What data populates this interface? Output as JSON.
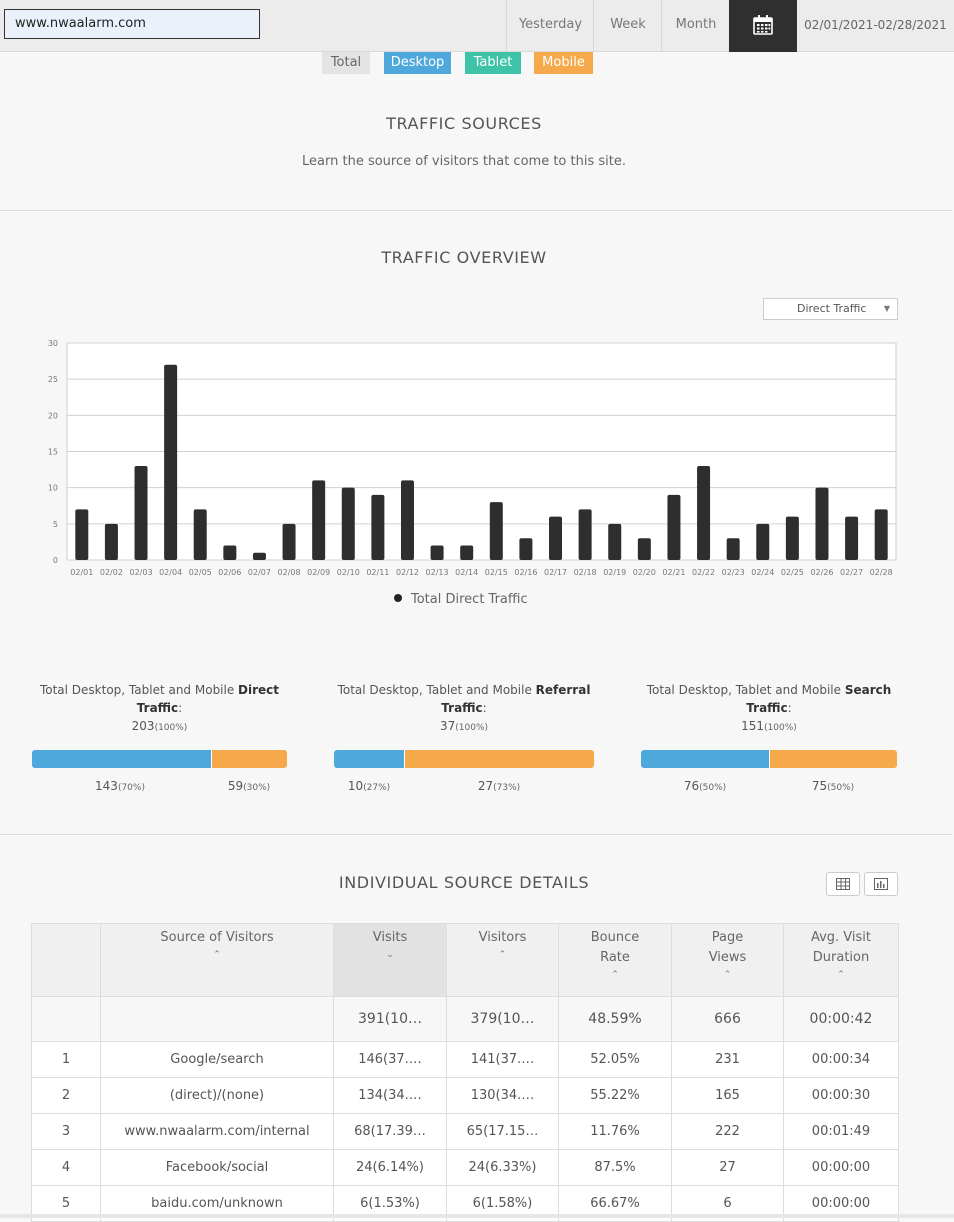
{
  "topbar": {
    "url": "www.nwaalarm.com",
    "ranges": [
      "Yesterday",
      "Week",
      "Month"
    ],
    "calendar_icon": "calendar-icon",
    "date_range": "02/01/2021-02/28/2021"
  },
  "device_tabs": [
    {
      "label": "Total",
      "color": "#e4e4e4"
    },
    {
      "label": "Desktop",
      "color": "#4fa8dc"
    },
    {
      "label": "Tablet",
      "color": "#3ec3a8"
    },
    {
      "label": "Mobile",
      "color": "#f5a94a"
    }
  ],
  "traffic_sources": {
    "title": "TRAFFIC  SOURCES",
    "subtitle": "Learn the source of visitors that come to this site."
  },
  "overview": {
    "title": "TRAFFIC  OVERVIEW",
    "select_value": "Direct Traffic",
    "legend": "Total Direct Traffic"
  },
  "chart_data": {
    "type": "bar",
    "categories": [
      "02/01",
      "02/02",
      "02/03",
      "02/04",
      "02/05",
      "02/06",
      "02/07",
      "02/08",
      "02/09",
      "02/10",
      "02/11",
      "02/12",
      "02/13",
      "02/14",
      "02/15",
      "02/16",
      "02/17",
      "02/18",
      "02/19",
      "02/20",
      "02/21",
      "02/22",
      "02/23",
      "02/24",
      "02/25",
      "02/26",
      "02/27",
      "02/28"
    ],
    "series": [
      {
        "name": "Total Direct Traffic",
        "values": [
          7,
          5,
          13,
          27,
          7,
          2,
          1,
          5,
          11,
          10,
          9,
          11,
          2,
          2,
          8,
          3,
          6,
          7,
          5,
          3,
          9,
          13,
          3,
          5,
          6,
          10,
          6,
          7
        ]
      }
    ],
    "ylim": [
      0,
      30
    ],
    "yticks": [
      0,
      5,
      10,
      15,
      20,
      25,
      30
    ],
    "bar_color": "#2e2e2e",
    "grid": true,
    "legend_position": "bottom"
  },
  "summaries": [
    {
      "prefix": "Total Desktop, Tablet and Mobile ",
      "bold": "Direct Traffic",
      "suffix": ":",
      "total": "203",
      "total_pct": "(100%)",
      "segments": [
        {
          "value": "143",
          "pct": "(70%)",
          "fraction": 0.7,
          "color": "#4fa8dc"
        },
        {
          "value": "59",
          "pct": "(30%)",
          "fraction": 0.3,
          "color": "#f5a94a"
        }
      ]
    },
    {
      "prefix": "Total Desktop, Tablet and Mobile ",
      "bold": "Referral Traffic",
      "suffix": ":",
      "total": "37",
      "total_pct": "(100%)",
      "segments": [
        {
          "value": "10",
          "pct": "(27%)",
          "fraction": 0.27,
          "color": "#4fa8dc"
        },
        {
          "value": "27",
          "pct": "(73%)",
          "fraction": 0.73,
          "color": "#f5a94a"
        }
      ]
    },
    {
      "prefix": "Total Desktop, Tablet and Mobile ",
      "bold": "Search Traffic",
      "suffix": ":",
      "total": "151",
      "total_pct": "(100%)",
      "segments": [
        {
          "value": "76",
          "pct": "(50%)",
          "fraction": 0.5,
          "color": "#4fa8dc"
        },
        {
          "value": "75",
          "pct": "(50%)",
          "fraction": 0.5,
          "color": "#f5a94a"
        }
      ]
    }
  ],
  "details": {
    "title": "INDIVIDUAL  SOURCE  DETAILS",
    "view_icons": [
      "table-view-icon",
      "chart-view-icon"
    ],
    "columns": [
      {
        "label": "",
        "caret": ""
      },
      {
        "label": "Source of Visitors",
        "caret": "^"
      },
      {
        "label": "Visits",
        "caret": "v"
      },
      {
        "label": "Visitors",
        "caret": "^"
      },
      {
        "label": "Bounce Rate",
        "caret": "^"
      },
      {
        "label": "Page Views",
        "caret": "^"
      },
      {
        "label": "Avg. Visit Duration",
        "caret": "^"
      }
    ],
    "total_row": {
      "visits": "391(10…",
      "visitors": "379(10…",
      "bounce": "48.59%",
      "views": "666",
      "duration": "00:00:42"
    },
    "rows": [
      {
        "rank": "1",
        "source": "Google/search",
        "visits": "146(37.…",
        "visitors": "141(37.…",
        "bounce": "52.05%",
        "views": "231",
        "duration": "00:00:34"
      },
      {
        "rank": "2",
        "source": "(direct)/(none)",
        "visits": "134(34.…",
        "visitors": "130(34.…",
        "bounce": "55.22%",
        "views": "165",
        "duration": "00:00:30"
      },
      {
        "rank": "3",
        "source": "www.nwaalarm.com/internal",
        "visits": "68(17.39…",
        "visitors": "65(17.15…",
        "bounce": "11.76%",
        "views": "222",
        "duration": "00:01:49"
      },
      {
        "rank": "4",
        "source": "Facebook/social",
        "visits": "24(6.14%)",
        "visitors": "24(6.33%)",
        "bounce": "87.5%",
        "views": "27",
        "duration": "00:00:00"
      },
      {
        "rank": "5",
        "source": "baidu.com/unknown",
        "visits": "6(1.53%)",
        "visitors": "6(1.58%)",
        "bounce": "66.67%",
        "views": "6",
        "duration": "00:00:00"
      }
    ]
  }
}
